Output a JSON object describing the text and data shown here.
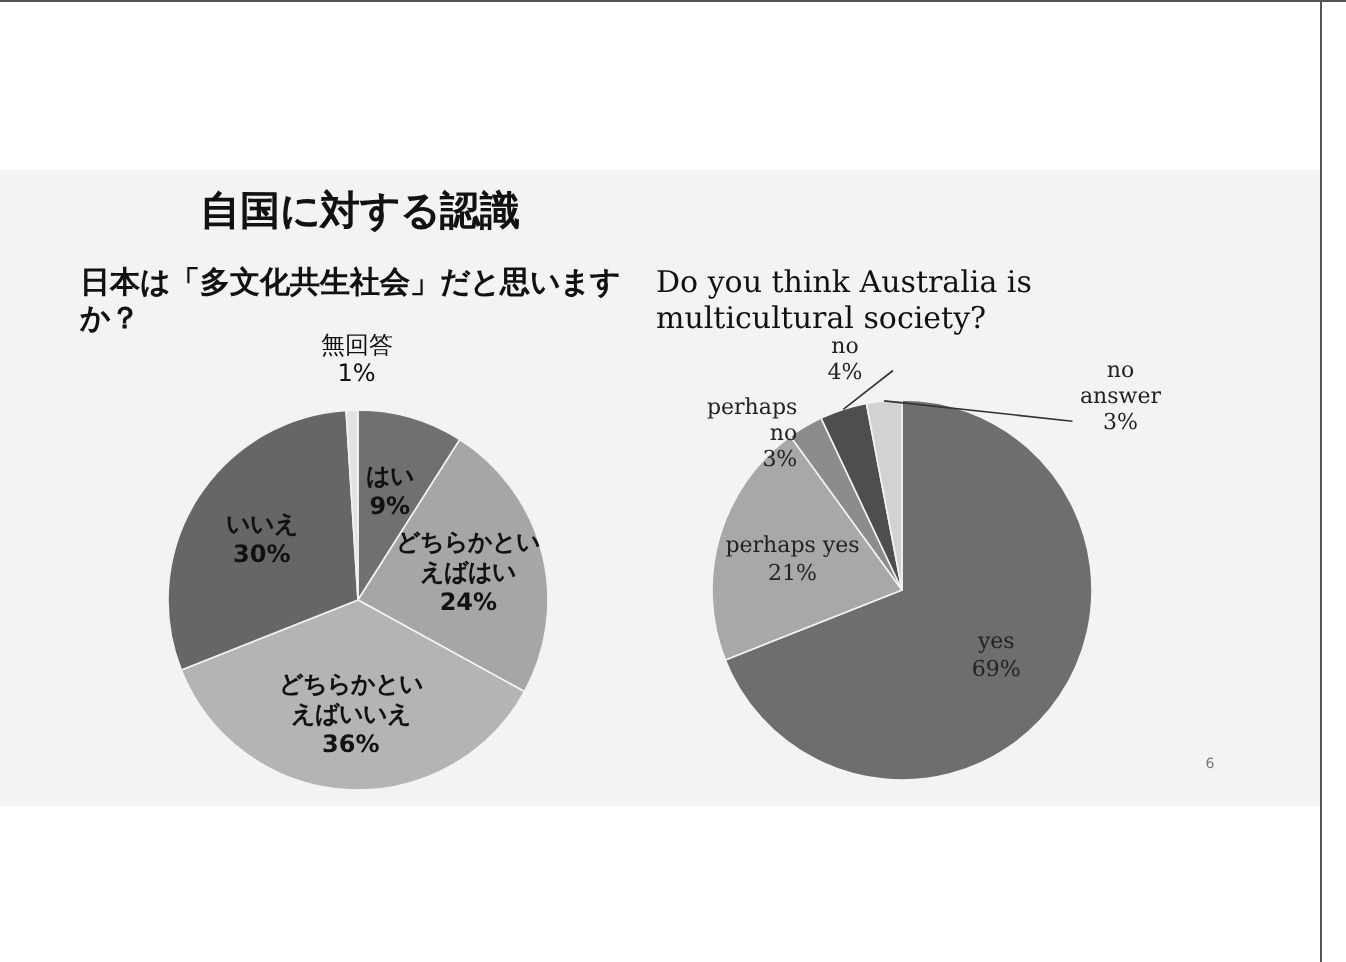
{
  "chart_data": [
    {
      "type": "pie",
      "title": "日本は「多文化共生社会」だと思いますか？",
      "categories": [
        "はい",
        "どちらかといえばはい",
        "どちらかといえばいいえ",
        "いいえ",
        "無回答"
      ],
      "values": [
        9,
        24,
        36,
        30,
        1
      ],
      "value_labels": [
        "9%",
        "24%",
        "36%",
        "30%",
        "1%"
      ],
      "colors": [
        "#707070",
        "#a6a6a6",
        "#b4b4b4",
        "#666666",
        "#e2e2e2"
      ],
      "data_labels": true,
      "annotations": [
        "自国に対する認識"
      ]
    },
    {
      "type": "pie",
      "title": "Do you think Australia is multicultural society?",
      "categories": [
        "yes",
        "perhaps yes",
        "perhaps no",
        "no",
        "no answer"
      ],
      "values": [
        69,
        21,
        3,
        4,
        3
      ],
      "value_labels": [
        "69%",
        "21%",
        "3%",
        "4%",
        "3%"
      ],
      "colors": [
        "#6e6e6e",
        "#a8a8a8",
        "#8c8c8c",
        "#4e4e4e",
        "#d2d2d2"
      ],
      "data_labels": true,
      "annotations": [
        "6"
      ]
    }
  ]
}
